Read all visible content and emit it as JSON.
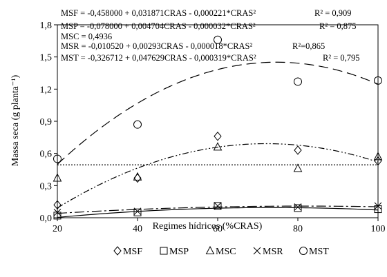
{
  "chart_data": {
    "type": "scatter",
    "xlabel": "Regimes hídricos (%CRAS)",
    "ylabel": "Massa seca (g planta⁻¹)",
    "xlim": [
      20,
      100
    ],
    "ylim": [
      0,
      1.8
    ],
    "x_ticks": [
      20,
      40,
      60,
      80,
      100
    ],
    "x_tick_labels": [
      "20",
      "40",
      "60",
      "80",
      "100"
    ],
    "y_ticks": [
      0,
      0.3,
      0.6,
      0.9,
      1.2,
      1.5,
      1.8
    ],
    "y_tick_labels": [
      "0,0",
      "0,3",
      "0,6",
      "0,9",
      "1,2",
      "1,5",
      "1,8"
    ],
    "grid": false,
    "legend_position": "bottom",
    "x": [
      20,
      40,
      60,
      80,
      100
    ],
    "series": [
      {
        "name": "MSF",
        "marker": "diamond",
        "values": [
          0.12,
          0.37,
          0.76,
          0.63,
          0.53
        ],
        "fit": {
          "type": "quadratic",
          "coef": [
            -0.458,
            0.031871,
            -0.000221
          ],
          "line": "dash-dot-dot"
        }
      },
      {
        "name": "MSP",
        "marker": "square",
        "values": [
          0.02,
          0.05,
          0.11,
          0.09,
          0.08
        ],
        "fit": {
          "type": "quadratic",
          "coef": [
            -0.078,
            0.004704,
            -3.2e-05
          ],
          "line": "solid"
        }
      },
      {
        "name": "MSC",
        "marker": "triangle",
        "values": [
          0.37,
          0.38,
          0.66,
          0.46,
          0.57
        ],
        "fit": {
          "type": "constant",
          "coef": [
            0.4936
          ],
          "line": "dotted"
        }
      },
      {
        "name": "MSR",
        "marker": "x",
        "values": [
          0.05,
          0.06,
          0.11,
          0.1,
          0.11
        ],
        "fit": {
          "type": "quadratic",
          "coef": [
            -0.01052,
            0.00293,
            -1.8e-05
          ],
          "line": "dash-dot"
        }
      },
      {
        "name": "MST",
        "marker": "circle",
        "values": [
          0.55,
          0.87,
          1.66,
          1.27,
          1.28
        ],
        "fit": {
          "type": "quadratic",
          "coef": [
            -0.326712,
            0.047629,
            -0.000319
          ],
          "line": "dashed"
        }
      }
    ],
    "equations": [
      {
        "name": "MSF",
        "text": "MSF = -0,458000 + 0,031871CRAS - 0,000221*CRAS²",
        "r2": "R² = 0,909"
      },
      {
        "name": "MSP",
        "text": "MSP = -0,078000 + 0,004704CRAS - 0,000032*CRAS²",
        "r2": "R² = 0,875"
      },
      {
        "name": "MSC",
        "text": "MSC = 0,4936",
        "r2": ""
      },
      {
        "name": "MSR",
        "text": "MSR = -0,010520 + 0,00293CRAS - 0,000018*CRAS²",
        "r2": "R²=0,865"
      },
      {
        "name": "MST",
        "text": "MST = -0,326712 + 0,047629CRAS - 0,000319*CRAS²",
        "r2": "R² = 0,795"
      }
    ]
  }
}
